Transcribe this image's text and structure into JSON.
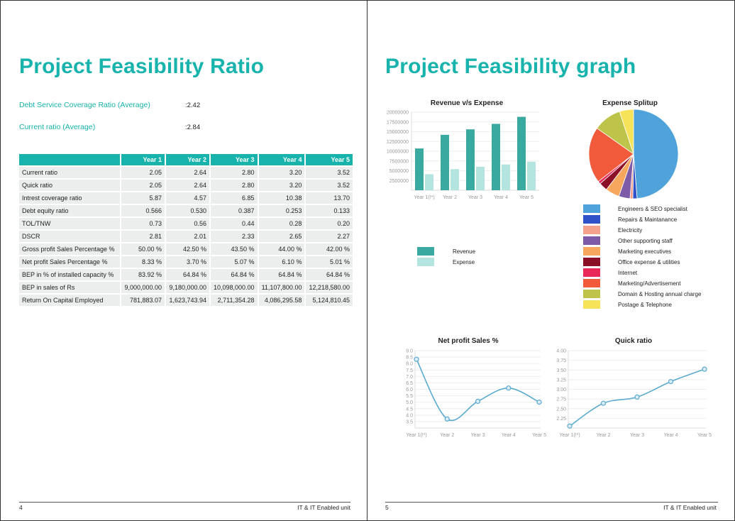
{
  "left_page": {
    "title": "Project Feasibility Ratio",
    "summary": [
      {
        "label": "Debt Service Coverage Ratio (Average)",
        "value": ":2.42"
      },
      {
        "label": "Current ratio (Average)",
        "value": ":2.84"
      }
    ],
    "table": {
      "headers": [
        "",
        "Year 1",
        "Year 2",
        "Year 3",
        "Year 4",
        "Year 5"
      ],
      "rows": [
        [
          "Current ratio",
          "2.05",
          "2.64",
          "2.80",
          "3.20",
          "3.52"
        ],
        [
          "Quick ratio",
          "2.05",
          "2.64",
          "2.80",
          "3.20",
          "3.52"
        ],
        [
          "Intrest coverage ratio",
          "5.87",
          "4.57",
          "6.85",
          "10.38",
          "13.70"
        ],
        [
          "Debt equity ratio",
          "0.566",
          "0.530",
          "0.387",
          "0.253",
          "0.133"
        ],
        [
          "TOL/TNW",
          "0.73",
          "0.56",
          "0.44",
          "0.28",
          "0.20"
        ],
        [
          "DSCR",
          "2.81",
          "2.01",
          "2.33",
          "2.65",
          "2.27"
        ],
        [
          "Gross profit Sales Percentage %",
          "50.00 %",
          "42.50 %",
          "43.50 %",
          "44.00 %",
          "42.00 %"
        ],
        [
          "Net profit Sales Percentage %",
          "8.33 %",
          "3.70 %",
          "5.07 %",
          "6.10 %",
          "5.01 %"
        ],
        [
          "BEP in % of installed capacity %",
          "83.92 %",
          "64.84 %",
          "64.84 %",
          "64.84 %",
          "64.84 %"
        ],
        [
          "BEP in sales of Rs",
          "9,000,000.00",
          "9,180,000.00",
          "10,098,000.00",
          "11,107,800.00",
          "12,218,580.00"
        ],
        [
          "Return On Capital Employed",
          "781,883.07",
          "1,623,743.94",
          "2,711,354.28",
          "4,086,295.58",
          "5,124,810.45"
        ]
      ]
    },
    "footer": {
      "page": "4",
      "unit": "IT & IT Enabled unit"
    }
  },
  "right_page": {
    "title": "Project Feasibility graph",
    "footer": {
      "page": "5",
      "unit": "IT & IT Enabled unit"
    }
  },
  "colors": {
    "accent": "#17b3ac",
    "revenue": "#3aa99f",
    "expense": "#b4e4de",
    "line": "#5aaad0"
  },
  "chart_data": [
    {
      "type": "bar",
      "title": "Revenue v/s Expense",
      "categories": [
        "Year 1(!*)",
        "Year 2",
        "Year 3",
        "Year 4",
        "Year 5"
      ],
      "series": [
        {
          "name": "Revenue",
          "values": [
            10700000,
            14200000,
            15600000,
            17000000,
            18800000
          ]
        },
        {
          "name": "Expense",
          "values": [
            4100000,
            5400000,
            6000000,
            6600000,
            7300000
          ]
        }
      ],
      "yticks": [
        "20000000",
        "17500000",
        "15000000",
        "12500000",
        "10000000",
        "7500000",
        "5000000",
        "2500000"
      ],
      "ylim": [
        0,
        20000000
      ],
      "legend": "bottom-left"
    },
    {
      "type": "pie",
      "title": "Expense Splitup",
      "labels": [
        "Engineers & SEO specialist",
        "Repairs & Maintanance",
        "Electricity",
        "Other supporting staff",
        "Marketing executives",
        "Office expense & utilities",
        "Internet",
        "Marketing/Advertisement",
        "Domain & Hosting annual charge",
        "Postage & Telephone"
      ],
      "values": [
        48,
        1.5,
        1,
        4,
        5,
        3,
        1,
        20,
        10,
        5
      ],
      "colors": [
        "#4fa3da",
        "#3052c8",
        "#f4a28c",
        "#7d5ba6",
        "#f7a85e",
        "#8b0f27",
        "#e8295a",
        "#f25a3c",
        "#bec44a",
        "#f7e35a"
      ],
      "legend": "bottom"
    },
    {
      "type": "line",
      "title": "Net profit Sales %",
      "categories": [
        "Year 1(!*)",
        "Year 2",
        "Year 3",
        "Year 4",
        "Year 5"
      ],
      "values": [
        8.33,
        3.7,
        5.07,
        6.1,
        5.01
      ],
      "yticks": [
        "9.0",
        "8.5",
        "8.0",
        "7.5",
        "7.0",
        "6.5",
        "6.0",
        "5.5",
        "5.0",
        "4.5",
        "4.0",
        "3.5"
      ],
      "ylim": [
        3.0,
        9.0
      ]
    },
    {
      "type": "line",
      "title": "Quick ratio",
      "categories": [
        "Year 1(!*)",
        "Year 2",
        "Year 3",
        "Year 4",
        "Year 5"
      ],
      "values": [
        2.05,
        2.64,
        2.8,
        3.2,
        3.52
      ],
      "yticks": [
        "4.00",
        "3.75",
        "3.50",
        "3.25",
        "3.00",
        "2.75",
        "2.50",
        "2.25"
      ],
      "ylim": [
        2.0,
        4.0
      ]
    }
  ]
}
